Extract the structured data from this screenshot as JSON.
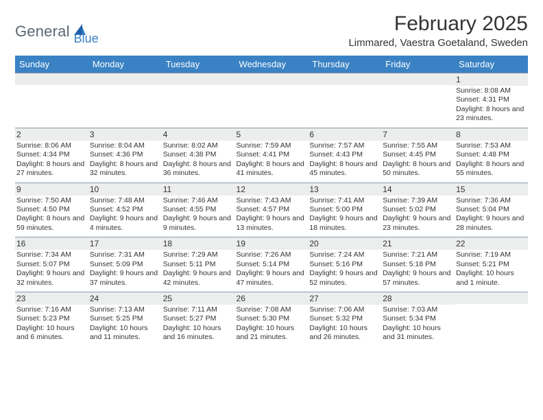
{
  "brand": {
    "part1": "General",
    "part2": "Blue"
  },
  "title": "February 2025",
  "location": "Limmared, Vaestra Goetaland, Sweden",
  "colors": {
    "header_bg": "#3a82c4",
    "header_text": "#ffffff",
    "daynum_bg": "#eceded",
    "rule": "#8a9aa8",
    "logo_gray": "#5c6670",
    "logo_blue": "#3a7fc4"
  },
  "fonts": {
    "title_pt": 30,
    "location_pt": 15,
    "dow_pt": 13,
    "daynum_pt": 12,
    "body_pt": 10.5
  },
  "dow": [
    "Sunday",
    "Monday",
    "Tuesday",
    "Wednesday",
    "Thursday",
    "Friday",
    "Saturday"
  ],
  "weeks": [
    [
      {
        "n": "",
        "sr": "",
        "ss": "",
        "dl": ""
      },
      {
        "n": "",
        "sr": "",
        "ss": "",
        "dl": ""
      },
      {
        "n": "",
        "sr": "",
        "ss": "",
        "dl": ""
      },
      {
        "n": "",
        "sr": "",
        "ss": "",
        "dl": ""
      },
      {
        "n": "",
        "sr": "",
        "ss": "",
        "dl": ""
      },
      {
        "n": "",
        "sr": "",
        "ss": "",
        "dl": ""
      },
      {
        "n": "1",
        "sr": "Sunrise: 8:08 AM",
        "ss": "Sunset: 4:31 PM",
        "dl": "Daylight: 8 hours and 23 minutes."
      }
    ],
    [
      {
        "n": "2",
        "sr": "Sunrise: 8:06 AM",
        "ss": "Sunset: 4:34 PM",
        "dl": "Daylight: 8 hours and 27 minutes."
      },
      {
        "n": "3",
        "sr": "Sunrise: 8:04 AM",
        "ss": "Sunset: 4:36 PM",
        "dl": "Daylight: 8 hours and 32 minutes."
      },
      {
        "n": "4",
        "sr": "Sunrise: 8:02 AM",
        "ss": "Sunset: 4:38 PM",
        "dl": "Daylight: 8 hours and 36 minutes."
      },
      {
        "n": "5",
        "sr": "Sunrise: 7:59 AM",
        "ss": "Sunset: 4:41 PM",
        "dl": "Daylight: 8 hours and 41 minutes."
      },
      {
        "n": "6",
        "sr": "Sunrise: 7:57 AM",
        "ss": "Sunset: 4:43 PM",
        "dl": "Daylight: 8 hours and 45 minutes."
      },
      {
        "n": "7",
        "sr": "Sunrise: 7:55 AM",
        "ss": "Sunset: 4:45 PM",
        "dl": "Daylight: 8 hours and 50 minutes."
      },
      {
        "n": "8",
        "sr": "Sunrise: 7:53 AM",
        "ss": "Sunset: 4:48 PM",
        "dl": "Daylight: 8 hours and 55 minutes."
      }
    ],
    [
      {
        "n": "9",
        "sr": "Sunrise: 7:50 AM",
        "ss": "Sunset: 4:50 PM",
        "dl": "Daylight: 8 hours and 59 minutes."
      },
      {
        "n": "10",
        "sr": "Sunrise: 7:48 AM",
        "ss": "Sunset: 4:52 PM",
        "dl": "Daylight: 9 hours and 4 minutes."
      },
      {
        "n": "11",
        "sr": "Sunrise: 7:46 AM",
        "ss": "Sunset: 4:55 PM",
        "dl": "Daylight: 9 hours and 9 minutes."
      },
      {
        "n": "12",
        "sr": "Sunrise: 7:43 AM",
        "ss": "Sunset: 4:57 PM",
        "dl": "Daylight: 9 hours and 13 minutes."
      },
      {
        "n": "13",
        "sr": "Sunrise: 7:41 AM",
        "ss": "Sunset: 5:00 PM",
        "dl": "Daylight: 9 hours and 18 minutes."
      },
      {
        "n": "14",
        "sr": "Sunrise: 7:39 AM",
        "ss": "Sunset: 5:02 PM",
        "dl": "Daylight: 9 hours and 23 minutes."
      },
      {
        "n": "15",
        "sr": "Sunrise: 7:36 AM",
        "ss": "Sunset: 5:04 PM",
        "dl": "Daylight: 9 hours and 28 minutes."
      }
    ],
    [
      {
        "n": "16",
        "sr": "Sunrise: 7:34 AM",
        "ss": "Sunset: 5:07 PM",
        "dl": "Daylight: 9 hours and 32 minutes."
      },
      {
        "n": "17",
        "sr": "Sunrise: 7:31 AM",
        "ss": "Sunset: 5:09 PM",
        "dl": "Daylight: 9 hours and 37 minutes."
      },
      {
        "n": "18",
        "sr": "Sunrise: 7:29 AM",
        "ss": "Sunset: 5:11 PM",
        "dl": "Daylight: 9 hours and 42 minutes."
      },
      {
        "n": "19",
        "sr": "Sunrise: 7:26 AM",
        "ss": "Sunset: 5:14 PM",
        "dl": "Daylight: 9 hours and 47 minutes."
      },
      {
        "n": "20",
        "sr": "Sunrise: 7:24 AM",
        "ss": "Sunset: 5:16 PM",
        "dl": "Daylight: 9 hours and 52 minutes."
      },
      {
        "n": "21",
        "sr": "Sunrise: 7:21 AM",
        "ss": "Sunset: 5:18 PM",
        "dl": "Daylight: 9 hours and 57 minutes."
      },
      {
        "n": "22",
        "sr": "Sunrise: 7:19 AM",
        "ss": "Sunset: 5:21 PM",
        "dl": "Daylight: 10 hours and 1 minute."
      }
    ],
    [
      {
        "n": "23",
        "sr": "Sunrise: 7:16 AM",
        "ss": "Sunset: 5:23 PM",
        "dl": "Daylight: 10 hours and 6 minutes."
      },
      {
        "n": "24",
        "sr": "Sunrise: 7:13 AM",
        "ss": "Sunset: 5:25 PM",
        "dl": "Daylight: 10 hours and 11 minutes."
      },
      {
        "n": "25",
        "sr": "Sunrise: 7:11 AM",
        "ss": "Sunset: 5:27 PM",
        "dl": "Daylight: 10 hours and 16 minutes."
      },
      {
        "n": "26",
        "sr": "Sunrise: 7:08 AM",
        "ss": "Sunset: 5:30 PM",
        "dl": "Daylight: 10 hours and 21 minutes."
      },
      {
        "n": "27",
        "sr": "Sunrise: 7:06 AM",
        "ss": "Sunset: 5:32 PM",
        "dl": "Daylight: 10 hours and 26 minutes."
      },
      {
        "n": "28",
        "sr": "Sunrise: 7:03 AM",
        "ss": "Sunset: 5:34 PM",
        "dl": "Daylight: 10 hours and 31 minutes."
      },
      {
        "n": "",
        "sr": "",
        "ss": "",
        "dl": ""
      }
    ]
  ]
}
